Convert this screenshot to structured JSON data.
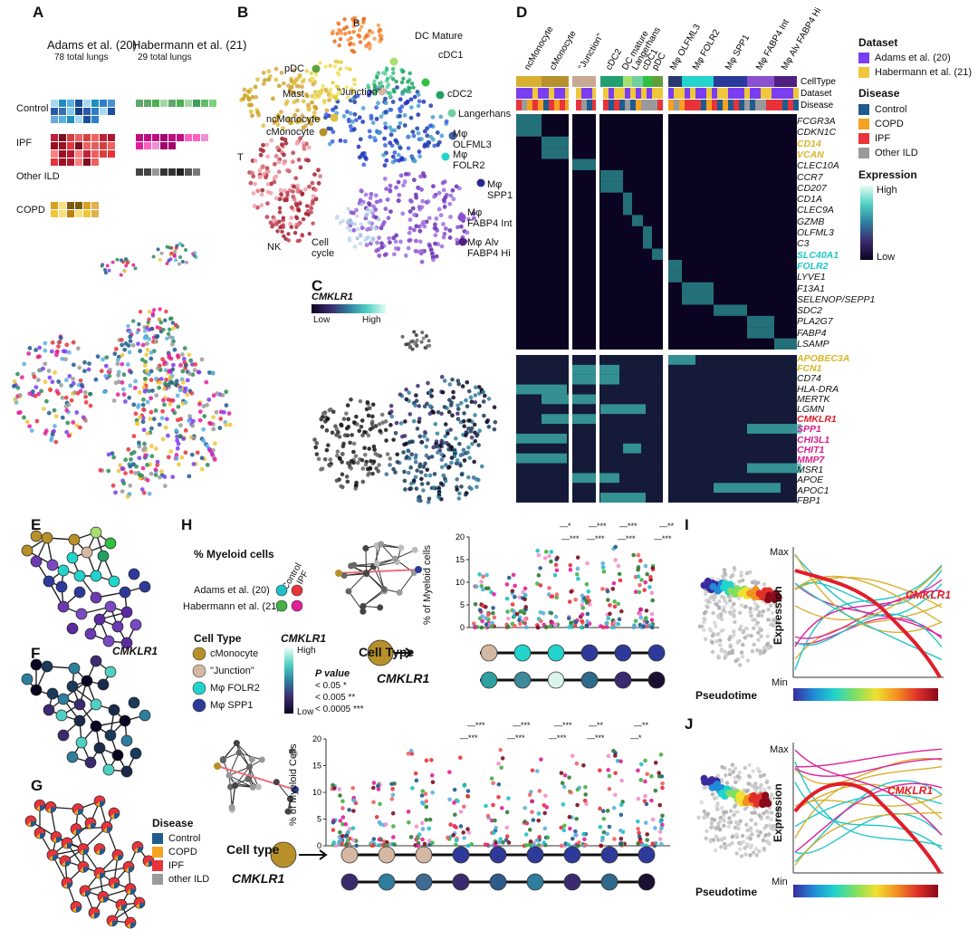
{
  "panels": [
    "A",
    "B",
    "C",
    "D",
    "E",
    "F",
    "G",
    "H",
    "I",
    "J"
  ],
  "panel_a": {
    "adams": "Adams et al. (20)",
    "adams_sub": "78 total lungs",
    "habermann": "Habermann et al. (21)",
    "habermann_sub": "29 total lungs",
    "rows": [
      "Control",
      "IPF",
      "Other ILD",
      "COPD"
    ]
  },
  "panel_b": {
    "clusters": [
      "B",
      "DC Mature",
      "pDC",
      "cDC1",
      "\"Junction\"",
      "cDC2",
      "Mast",
      "Langerhans",
      "ncMonocyte",
      "Mφ OLFML3",
      "cMonocyte",
      "Mφ FOLR2",
      "T",
      "Mφ SPP1",
      "Mφ FABP4 Int",
      "NK",
      "Cell cycle",
      "Mφ Alv FABP4 Hi"
    ]
  },
  "panel_c": {
    "gene": "CMKLR1",
    "low": "Low",
    "high": "High"
  },
  "panel_d": {
    "celltypes": [
      "ncMonocyte",
      "cMonocyte",
      "\"Junction\"",
      "cDC2",
      "DC mature",
      "Langerhans",
      "cDC1",
      "pDC",
      "Mφ OLFML3",
      "Mφ FOLR2",
      "Mφ SPP1",
      "Mφ FABP4 Int",
      "Mφ Alv FABP4 Hi"
    ],
    "row_labels": [
      "CellType",
      "Dataset",
      "Disease"
    ],
    "genes_top": [
      "FCGR3A",
      "CDKN1C",
      "CD14",
      "VCAN",
      "CLEC10A",
      "CCR7",
      "CD207",
      "CD1A",
      "CLEC9A",
      "GZMB",
      "OLFML3",
      "C3",
      "SLC40A1",
      "FOLR2",
      "LYVE1",
      "F13A1",
      "SELENOP/SEPP1",
      "SDC2",
      "PLA2G7",
      "FABP4",
      "LSAMP"
    ],
    "genes_bottom": [
      "APOBEC3A",
      "FCN1",
      "CD74",
      "HLA-DRA",
      "MERTK",
      "LGMN",
      "CMKLR1",
      "SPP1",
      "CHI3L1",
      "CHIT1",
      "MMP7",
      "MSR1",
      "APOE",
      "APOC1",
      "FBP1"
    ],
    "gene_colors": {
      "yellow": "#d9b52a",
      "cyan": "#1fc7c7",
      "red": "#e21d2a",
      "magenta": "#d4208e"
    }
  },
  "legend_d": {
    "dataset_title": "Dataset",
    "datasets": [
      {
        "label": "Adams et al. (20)",
        "color": "#7b3df0"
      },
      {
        "label": "Habermann et al. (21)",
        "color": "#f0c63a"
      }
    ],
    "disease_title": "Disease",
    "diseases": [
      {
        "label": "Control",
        "color": "#1f5b8e"
      },
      {
        "label": "COPD",
        "color": "#f4a21f"
      },
      {
        "label": "IPF",
        "color": "#e8333a"
      },
      {
        "label": "Other ILD",
        "color": "#9a9a9a"
      }
    ],
    "expression_title": "Expression",
    "high": "High",
    "low": "Low"
  },
  "panel_f": {
    "gene": "CMKLR1"
  },
  "legend_g": {
    "title": "Disease",
    "items": [
      {
        "label": "Control",
        "color": "#1f5b8e"
      },
      {
        "label": "COPD",
        "color": "#f4a21f"
      },
      {
        "label": "IPF",
        "color": "#e8333a"
      },
      {
        "label": "other ILD",
        "color": "#9a9a9a"
      }
    ]
  },
  "panel_h": {
    "myeloid_title": "% Myeloid cells",
    "control": "Control",
    "ipf": "IPF",
    "adams": "Adams et al. (20)",
    "habermann": "Habermann et al. (21)",
    "celltype_title": "Cell Type",
    "celltypes": [
      "cMonocyte",
      "\"Junction\"",
      "Mφ FOLR2",
      "Mφ SPP1"
    ],
    "cmklr1": "CMKLR1",
    "high": "High",
    "low": "Low",
    "pvalue_title": "P value",
    "pvalues": [
      "< 0.05 *",
      "< 0.005 **",
      "< 0.0005 ***"
    ],
    "ylabel_top": "% of Myeloid cells",
    "ylabel_bottom": "% of Myeloid Cells",
    "celltype_row_top": "Cell Type",
    "celltype_row_bottom": "Cell type",
    "stars_top": [
      "*",
      "***",
      "***",
      "***",
      "**",
      "***",
      "***",
      "***"
    ],
    "stars_bottom": [
      "***",
      "***",
      "***",
      "***",
      "***",
      "***",
      "**",
      "***",
      "**",
      "*"
    ]
  },
  "chart_data": [
    {
      "type": "scatter",
      "title": "H top",
      "ylabel": "% of Myeloid cells",
      "ylim": [
        0,
        20
      ],
      "yticks": [
        0,
        5,
        10,
        15,
        20
      ],
      "groups": 6
    },
    {
      "type": "scatter",
      "title": "H bottom",
      "ylabel": "% of Myeloid Cells",
      "ylim": [
        0,
        20
      ],
      "yticks": [
        0,
        5,
        10,
        15,
        20
      ],
      "groups": 9
    }
  ],
  "panel_i": {
    "max": "Max",
    "min": "Min",
    "ylabel": "Expression",
    "xlabel": "Pseudotime",
    "gene": "CMKLR1"
  },
  "panel_j": {
    "max": "Max",
    "min": "Min",
    "ylabel": "Expression",
    "xlabel": "Pseudotime",
    "gene": "CMKLR1"
  }
}
